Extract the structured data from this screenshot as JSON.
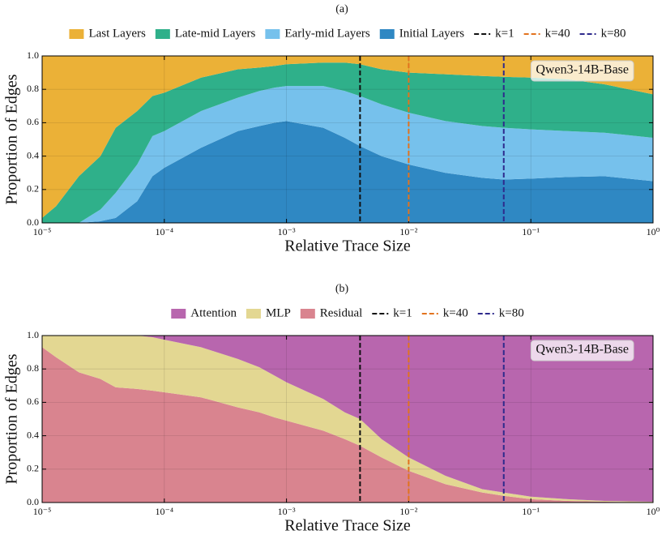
{
  "chart_data": [
    {
      "type": "stacked_area",
      "subtitle": "(a)",
      "xlabel": "Relative Trace Size",
      "ylabel": "Proportion of Edges",
      "annotation": "Qwen3-14B-Base",
      "xscale": "log",
      "grid": true,
      "xlim": [
        1e-05,
        1
      ],
      "ylim": [
        0,
        1
      ],
      "xticks": [
        {
          "value": 1e-05,
          "label": "10⁻⁵"
        },
        {
          "value": 0.0001,
          "label": "10⁻⁴"
        },
        {
          "value": 0.001,
          "label": "10⁻³"
        },
        {
          "value": 0.01,
          "label": "10⁻²"
        },
        {
          "value": 0.1,
          "label": "10⁻¹"
        },
        {
          "value": 1,
          "label": "10⁰"
        }
      ],
      "yticks": [
        {
          "value": 0,
          "label": "0.0"
        },
        0.2,
        0.4,
        0.6,
        0.8,
        {
          "value": 1,
          "label": "1.0"
        }
      ],
      "x": [
        1e-05,
        1.3e-05,
        2e-05,
        3e-05,
        4e-05,
        6e-05,
        8e-05,
        0.0001,
        0.0002,
        0.0004,
        0.0006,
        0.0008,
        0.001,
        0.002,
        0.003,
        0.004,
        0.006,
        0.01,
        0.02,
        0.04,
        0.06,
        0.1,
        0.2,
        0.4,
        1
      ],
      "series": [
        {
          "name": "Last Layers",
          "color": "#ebb137",
          "values": [
            0.97,
            0.9,
            0.72,
            0.6,
            0.43,
            0.33,
            0.24,
            0.22,
            0.13,
            0.08,
            0.07,
            0.06,
            0.05,
            0.04,
            0.04,
            0.05,
            0.08,
            0.1,
            0.11,
            0.12,
            0.125,
            0.13,
            0.14,
            0.17,
            0.23
          ]
        },
        {
          "name": "Late-mid Layers",
          "color": "#2fb08a",
          "values": [
            0.03,
            0.1,
            0.28,
            0.32,
            0.39,
            0.32,
            0.24,
            0.23,
            0.2,
            0.17,
            0.14,
            0.13,
            0.13,
            0.14,
            0.17,
            0.19,
            0.21,
            0.24,
            0.28,
            0.3,
            0.305,
            0.31,
            0.31,
            0.29,
            0.26
          ]
        },
        {
          "name": "Early-mid Layers",
          "color": "#76c1ec",
          "values": [
            0,
            0,
            0,
            0.07,
            0.15,
            0.22,
            0.24,
            0.22,
            0.22,
            0.2,
            0.21,
            0.21,
            0.21,
            0.25,
            0.28,
            0.3,
            0.31,
            0.31,
            0.31,
            0.31,
            0.31,
            0.295,
            0.275,
            0.26,
            0.26
          ]
        },
        {
          "name": "Initial Layers",
          "color": "#2f88c3",
          "values": [
            0,
            0,
            0,
            0.01,
            0.03,
            0.13,
            0.28,
            0.33,
            0.45,
            0.55,
            0.58,
            0.6,
            0.61,
            0.57,
            0.51,
            0.46,
            0.4,
            0.35,
            0.3,
            0.27,
            0.26,
            0.265,
            0.275,
            0.28,
            0.25
          ]
        }
      ],
      "vlines": [
        {
          "name": "k=1",
          "x": 0.004,
          "color": "#111111"
        },
        {
          "name": "k=40",
          "x": 0.01,
          "color": "#e2731e"
        },
        {
          "name": "k=80",
          "x": 0.06,
          "color": "#2e2a8c"
        }
      ]
    },
    {
      "type": "stacked_area",
      "subtitle": "(b)",
      "xlabel": "Relative Trace Size",
      "ylabel": "Proportion of Edges",
      "annotation": "Qwen3-14B-Base",
      "xscale": "log",
      "grid": true,
      "xlim": [
        1e-05,
        1
      ],
      "ylim": [
        0,
        1
      ],
      "xticks": [
        {
          "value": 1e-05,
          "label": "10⁻⁵"
        },
        {
          "value": 0.0001,
          "label": "10⁻⁴"
        },
        {
          "value": 0.001,
          "label": "10⁻³"
        },
        {
          "value": 0.01,
          "label": "10⁻²"
        },
        {
          "value": 0.1,
          "label": "10⁻¹"
        },
        {
          "value": 1,
          "label": "10⁰"
        }
      ],
      "yticks": [
        {
          "value": 0,
          "label": "0.0"
        },
        0.2,
        0.4,
        0.6,
        0.8,
        {
          "value": 1,
          "label": "1.0"
        }
      ],
      "x": [
        1e-05,
        1.3e-05,
        2e-05,
        3e-05,
        4e-05,
        6e-05,
        8e-05,
        0.0001,
        0.0002,
        0.0004,
        0.0006,
        0.0008,
        0.001,
        0.002,
        0.003,
        0.004,
        0.006,
        0.01,
        0.02,
        0.04,
        0.06,
        0.1,
        0.2,
        0.4,
        1
      ],
      "series": [
        {
          "name": "Attention",
          "color": "#b866ae",
          "values": [
            0,
            0,
            0,
            0,
            0,
            0,
            0.01,
            0.025,
            0.07,
            0.14,
            0.19,
            0.24,
            0.28,
            0.38,
            0.46,
            0.5,
            0.62,
            0.73,
            0.84,
            0.92,
            0.94,
            0.965,
            0.98,
            0.99,
            0.995
          ]
        },
        {
          "name": "MLP",
          "color": "#e3d792",
          "values": [
            0.07,
            0.13,
            0.22,
            0.26,
            0.31,
            0.32,
            0.32,
            0.315,
            0.3,
            0.29,
            0.27,
            0.25,
            0.23,
            0.19,
            0.16,
            0.16,
            0.11,
            0.08,
            0.05,
            0.02,
            0.02,
            0.015,
            0.01,
            0.005,
            0.005
          ]
        },
        {
          "name": "Residual",
          "color": "#d9848f",
          "values": [
            0.93,
            0.87,
            0.78,
            0.74,
            0.69,
            0.68,
            0.67,
            0.66,
            0.63,
            0.57,
            0.54,
            0.51,
            0.49,
            0.43,
            0.38,
            0.34,
            0.27,
            0.19,
            0.11,
            0.06,
            0.04,
            0.02,
            0.01,
            0.005,
            0
          ]
        }
      ],
      "vlines": [
        {
          "name": "k=1",
          "x": 0.004,
          "color": "#111111"
        },
        {
          "name": "k=40",
          "x": 0.01,
          "color": "#e2731e"
        },
        {
          "name": "k=80",
          "x": 0.06,
          "color": "#2e2a8c"
        }
      ]
    }
  ]
}
